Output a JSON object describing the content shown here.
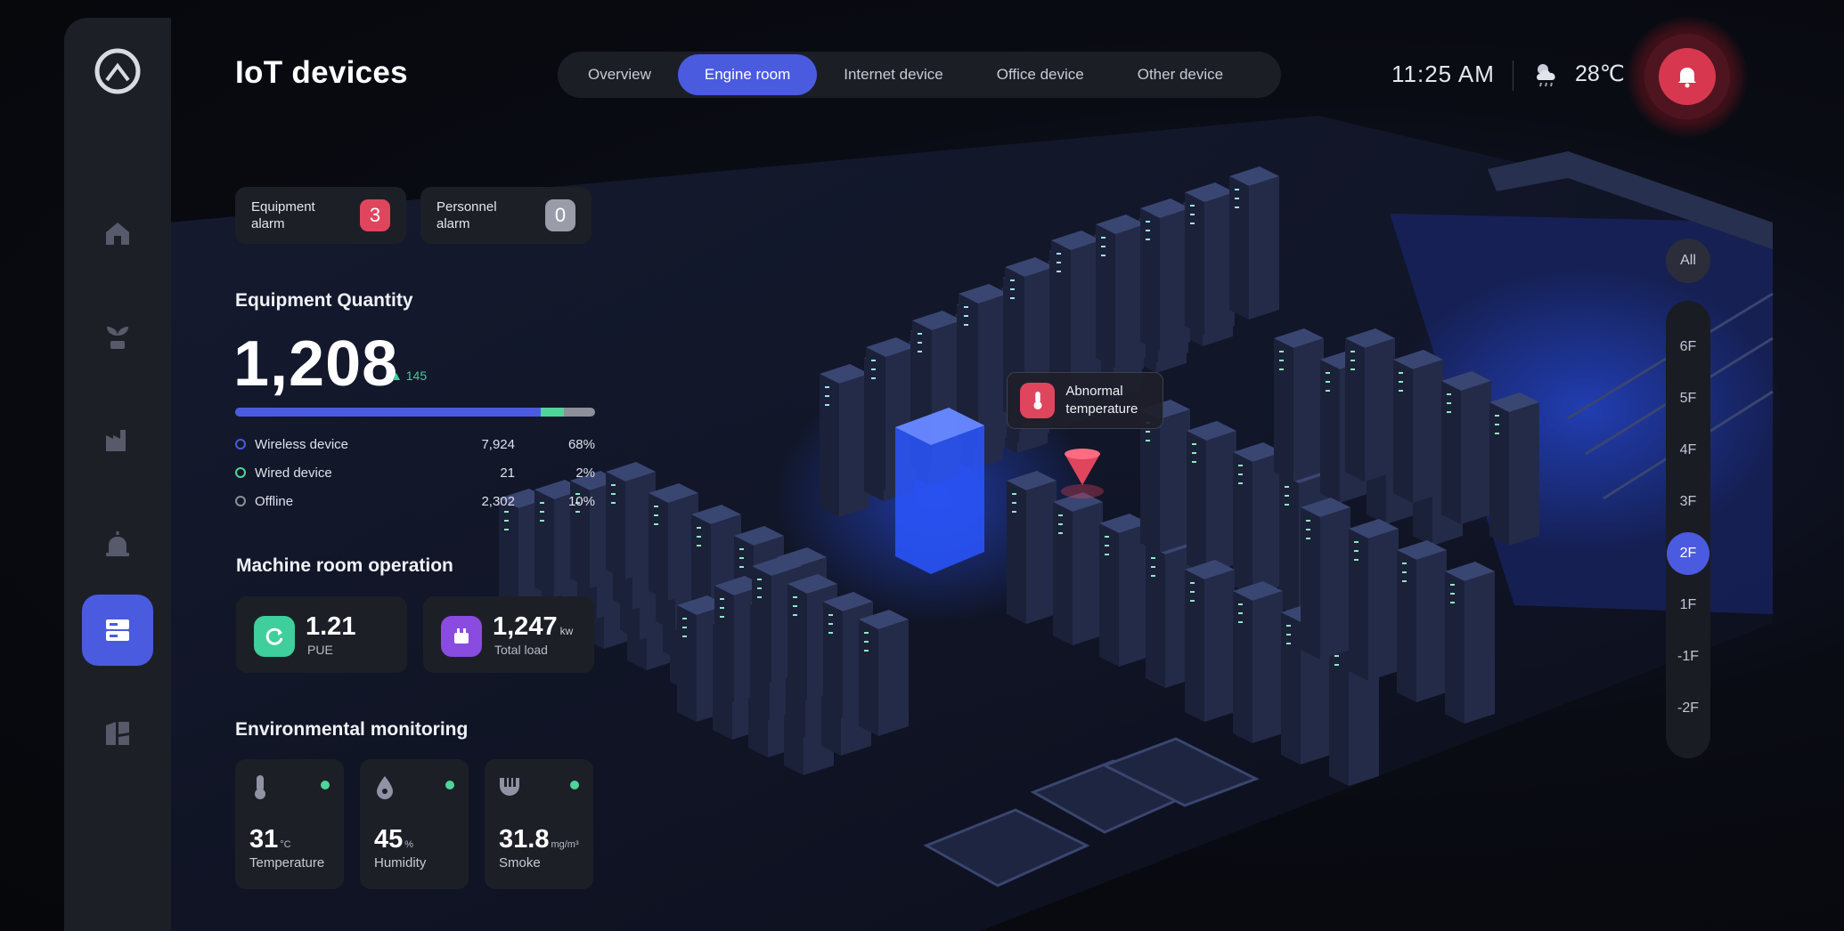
{
  "header": {
    "title": "IoT devices",
    "tabs": [
      {
        "label": "Overview"
      },
      {
        "label": "Engine room"
      },
      {
        "label": "Internet device"
      },
      {
        "label": "Office device"
      },
      {
        "label": "Other device"
      }
    ],
    "active_tab": "Engine room",
    "time": "11:25 AM",
    "weather_temp": "28℃",
    "weather_icon": "cloud-rain-icon",
    "notification_icon": "bell-icon"
  },
  "sidebar": {
    "logo_icon": "logo-icon",
    "items": [
      {
        "icon": "home-icon"
      },
      {
        "icon": "plant-icon"
      },
      {
        "icon": "factory-icon"
      },
      {
        "icon": "alarm-icon"
      },
      {
        "icon": "server-icon"
      },
      {
        "icon": "layout-icon"
      }
    ],
    "active_index": 4
  },
  "alarms": {
    "equipment": {
      "label": "Equipment alarm",
      "count": "3",
      "color": "#e0455e"
    },
    "personnel": {
      "label": "Personnel alarm",
      "count": "0",
      "color": "#9a9da9"
    }
  },
  "equipment_quantity": {
    "heading": "Equipment Quantity",
    "total": "1,208",
    "delta": "145",
    "items": [
      {
        "name": "Wireless device",
        "count": "7,924",
        "percent": "68%",
        "share": 0.68,
        "color": "#4a5be0"
      },
      {
        "name": "Wired device",
        "count": "21",
        "percent": "2%",
        "share": 0.02,
        "color": "#4fd49a"
      },
      {
        "name": "Offline",
        "count": "2,302",
        "percent": "10%",
        "share": 0.1,
        "color": "#8d8f99"
      }
    ]
  },
  "machine_room": {
    "heading": "Machine room operation",
    "pue": {
      "value": "1.21",
      "label": "PUE",
      "color": "#3ecf9c"
    },
    "load": {
      "value": "1,247",
      "unit": "kw",
      "label": "Total load",
      "color": "#8a4be0"
    }
  },
  "environment": {
    "heading": "Environmental monitoring",
    "temperature": {
      "value": "31",
      "unit": "°C",
      "label": "Temperature",
      "icon": "thermometer-icon"
    },
    "humidity": {
      "value": "45",
      "unit": "%",
      "label": "Humidity",
      "icon": "droplet-icon"
    },
    "smoke": {
      "value": "31.8",
      "unit": "mg/m³",
      "label": "Smoke",
      "icon": "smoke-detector-icon"
    }
  },
  "floors": {
    "all_label": "All",
    "items": [
      "6F",
      "5F",
      "4F",
      "3F",
      "2F",
      "1F",
      "-1F",
      "-2F"
    ],
    "active": "2F"
  },
  "alert_tooltip": {
    "text": "Abnormal temperature",
    "icon": "thermometer-icon",
    "color": "#e0455e"
  },
  "colors": {
    "accent": "#4a5be0",
    "alarm": "#e0455e",
    "ok": "#4fd49a"
  }
}
